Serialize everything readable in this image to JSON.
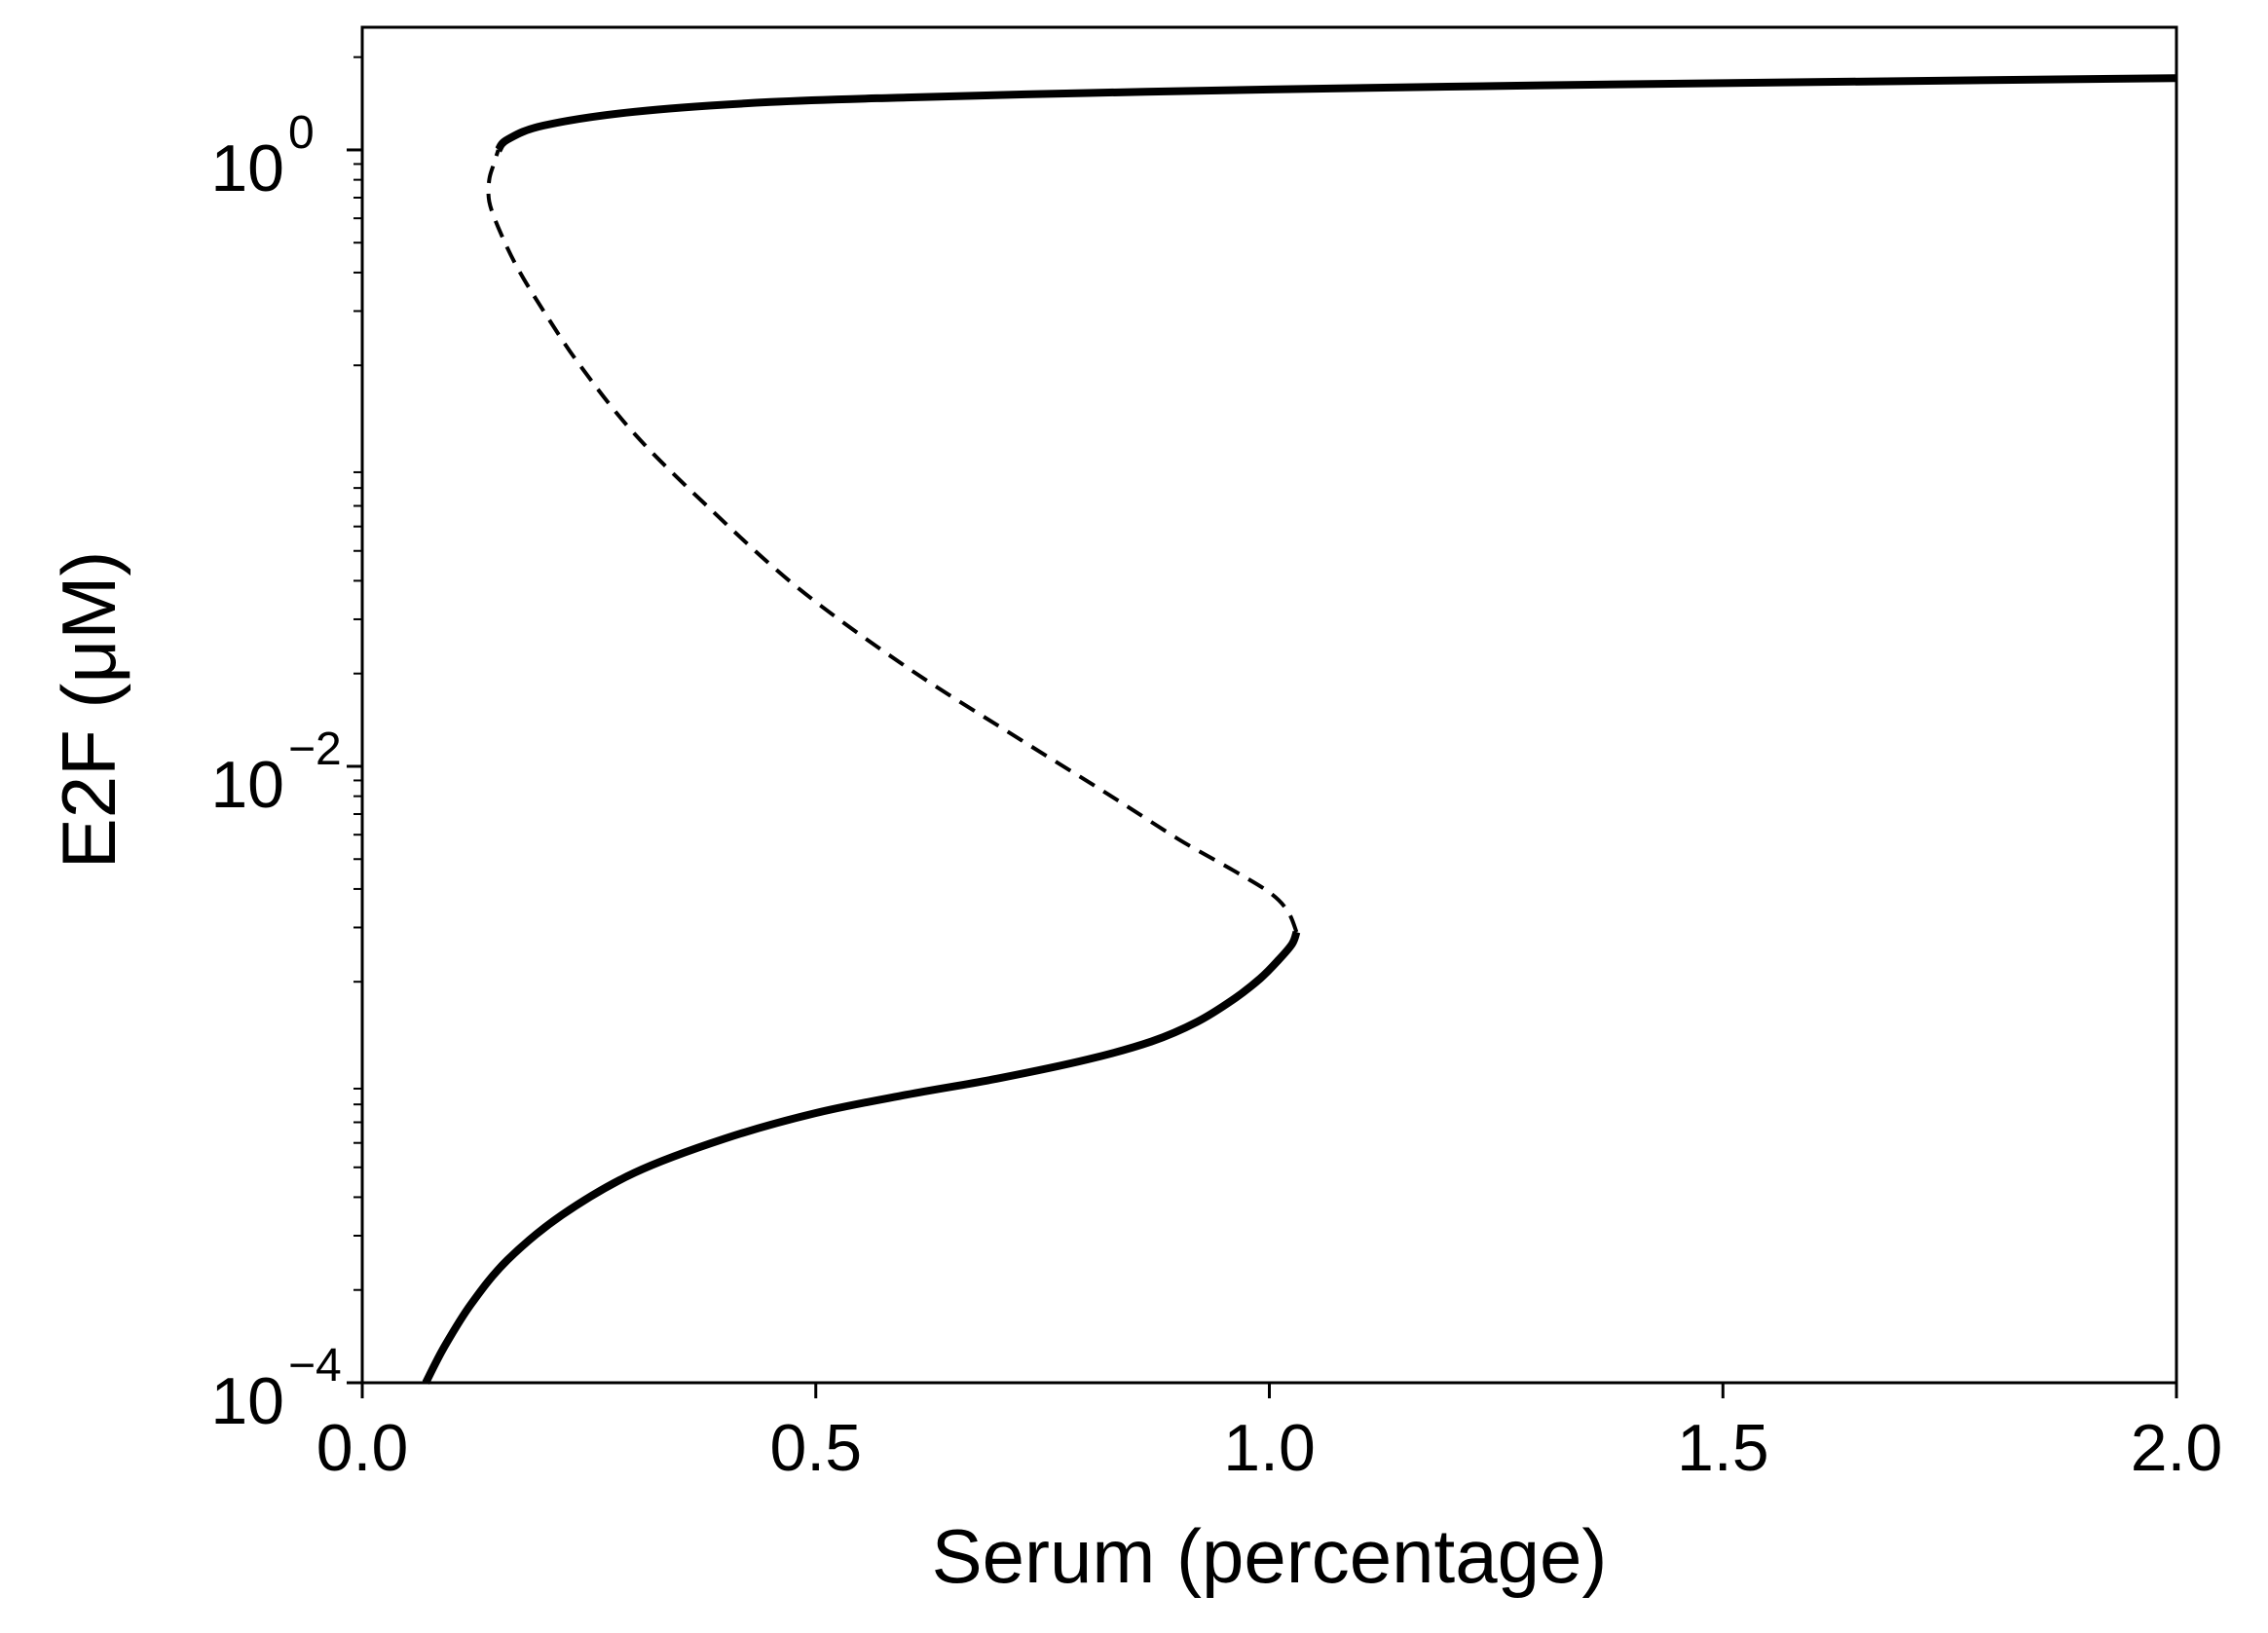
{
  "chart_data": {
    "type": "line",
    "xlabel": "Serum (percentage)",
    "ylabel": "E2F (μM)",
    "xlim": [
      0,
      2
    ],
    "ylim": [
      0.0001,
      2.5
    ],
    "yscale": "log",
    "grid": false,
    "x_ticks": [
      {
        "value": 0.0,
        "label": "0.0"
      },
      {
        "value": 0.5,
        "label": "0.5"
      },
      {
        "value": 1.0,
        "label": "1.0"
      },
      {
        "value": 1.5,
        "label": "1.5"
      },
      {
        "value": 2.0,
        "label": "2.0"
      }
    ],
    "y_ticks": [
      {
        "value": 1,
        "base": "10",
        "exp": "0"
      },
      {
        "value": 0.01,
        "base": "10",
        "exp": "−2"
      },
      {
        "value": 0.0001,
        "base": "10",
        "exp": "−4"
      }
    ],
    "series": [
      {
        "style": "solid",
        "color": "#000000",
        "points": [
          [
            0.07,
            0.0001
          ],
          [
            0.09,
            0.00013
          ],
          [
            0.12,
            0.00018
          ],
          [
            0.16,
            0.00025
          ],
          [
            0.22,
            0.00035
          ],
          [
            0.3,
            0.00048
          ],
          [
            0.4,
            0.00062
          ],
          [
            0.5,
            0.00075
          ],
          [
            0.6,
            0.00086
          ],
          [
            0.7,
            0.00097
          ],
          [
            0.8,
            0.00112
          ],
          [
            0.87,
            0.00128
          ],
          [
            0.92,
            0.00148
          ],
          [
            0.96,
            0.00175
          ],
          [
            0.99,
            0.00205
          ],
          [
            1.01,
            0.00235
          ],
          [
            1.025,
            0.00265
          ],
          [
            1.03,
            0.0029
          ]
        ]
      },
      {
        "style": "dashed",
        "color": "#000000",
        "points": [
          [
            1.03,
            0.0029
          ],
          [
            1.02,
            0.0034
          ],
          [
            1.0,
            0.0039
          ],
          [
            0.96,
            0.0046
          ],
          [
            0.9,
            0.0058
          ],
          [
            0.82,
            0.0082
          ],
          [
            0.72,
            0.0125
          ],
          [
            0.6,
            0.021
          ],
          [
            0.48,
            0.038
          ],
          [
            0.38,
            0.07
          ],
          [
            0.3,
            0.12
          ],
          [
            0.24,
            0.2
          ],
          [
            0.2,
            0.3
          ],
          [
            0.17,
            0.42
          ],
          [
            0.15,
            0.56
          ],
          [
            0.14,
            0.68
          ],
          [
            0.14,
            0.8
          ],
          [
            0.145,
            0.9
          ],
          [
            0.15,
            1.0
          ]
        ]
      },
      {
        "style": "solid",
        "color": "#000000",
        "points": [
          [
            0.15,
            1.0
          ],
          [
            0.16,
            1.08
          ],
          [
            0.2,
            1.2
          ],
          [
            0.3,
            1.33
          ],
          [
            0.45,
            1.43
          ],
          [
            0.6,
            1.48
          ],
          [
            0.8,
            1.53
          ],
          [
            1.0,
            1.57
          ],
          [
            1.3,
            1.62
          ],
          [
            1.6,
            1.66
          ],
          [
            2.0,
            1.71
          ]
        ]
      }
    ]
  }
}
